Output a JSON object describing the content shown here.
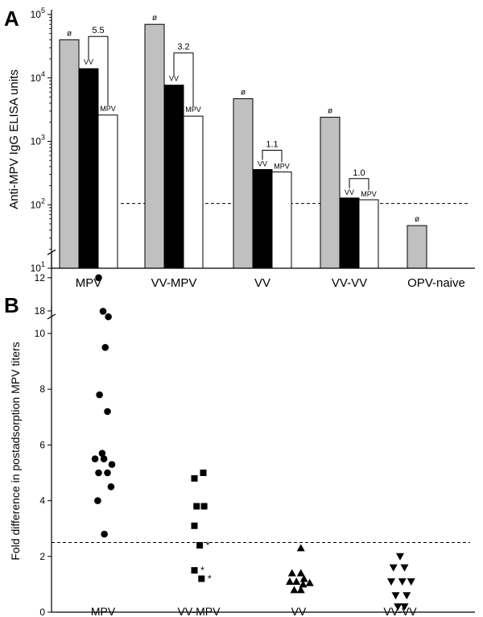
{
  "panels": [
    {
      "panel_label": "A",
      "type": "bar",
      "y_scale": "log",
      "ylabel": "Anti-MPV IgG ELISA units",
      "ylim": [
        10,
        100000
      ],
      "y_ticks": [
        {
          "value": 10,
          "base": "10",
          "exp": "1"
        },
        {
          "value": 100,
          "base": "10",
          "exp": "2"
        },
        {
          "value": 1000,
          "base": "10",
          "exp": "3"
        },
        {
          "value": 10000,
          "base": "10",
          "exp": "4"
        },
        {
          "value": 100000,
          "base": "10",
          "exp": "5"
        }
      ],
      "categories": [
        "MPV",
        "VV-MPV",
        "VV",
        "VV-VV",
        "OPV-naive"
      ],
      "series": [
        {
          "label": "ø",
          "color": "#c0c0c0",
          "values": [
            40000,
            70000,
            4700,
            2400,
            47
          ]
        },
        {
          "label": "VV",
          "color": "#000000",
          "values": [
            14000,
            7700,
            360,
            128,
            null
          ]
        },
        {
          "label": "MPV",
          "color": "#ffffff",
          "values": [
            2600,
            2500,
            330,
            120,
            null
          ]
        }
      ],
      "fold_changes": [
        "5.5",
        "3.2",
        "1.1",
        "1.0",
        null
      ],
      "reference_line": 105
    },
    {
      "panel_label": "B",
      "type": "scatter",
      "ylabel": "Fold difference in postadsorption MPV titers",
      "ylim": [
        0,
        18
      ],
      "y_ticks": [
        "0",
        "2",
        "4",
        "6",
        "8",
        "10",
        "12",
        "18"
      ],
      "y_axis_break": [
        13,
        17
      ],
      "categories": [
        "MPV",
        "VV-MPV",
        "VV",
        "VV-VV"
      ],
      "markers": [
        "circle",
        "square",
        "triangle-up",
        "triangle-down"
      ],
      "points": [
        [
          {
            "x": 0,
            "y": 17.8
          },
          {
            "x": -0.1,
            "y": 12.0
          },
          {
            "x": 0.12,
            "y": 10.6
          },
          {
            "x": 0.05,
            "y": 9.5
          },
          {
            "x": -0.08,
            "y": 7.8
          },
          {
            "x": 0.1,
            "y": 7.2
          },
          {
            "x": -0.18,
            "y": 5.5
          },
          {
            "x": 0.02,
            "y": 5.5
          },
          {
            "x": -0.02,
            "y": 5.7
          },
          {
            "x": -0.1,
            "y": 5.0
          },
          {
            "x": 0.1,
            "y": 5.0
          },
          {
            "x": 0.2,
            "y": 5.3
          },
          {
            "x": 0.18,
            "y": 4.5
          },
          {
            "x": -0.12,
            "y": 4.0
          },
          {
            "x": 0.03,
            "y": 2.8
          }
        ],
        [
          {
            "x": -0.1,
            "y": 4.8
          },
          {
            "x": 0.1,
            "y": 5.0
          },
          {
            "x": -0.05,
            "y": 3.8
          },
          {
            "x": 0.12,
            "y": 3.8
          },
          {
            "x": -0.1,
            "y": 3.1
          },
          {
            "x": 0.02,
            "y": 2.4,
            "note": "*"
          },
          {
            "x": -0.1,
            "y": 1.5,
            "note": "*"
          },
          {
            "x": 0.06,
            "y": 1.2,
            "note": "*"
          }
        ],
        [
          {
            "x": 0.05,
            "y": 2.3
          },
          {
            "x": -0.15,
            "y": 1.4
          },
          {
            "x": 0.05,
            "y": 1.4
          },
          {
            "x": -0.2,
            "y": 1.1
          },
          {
            "x": -0.05,
            "y": 1.1
          },
          {
            "x": 0.1,
            "y": 1.0
          },
          {
            "x": 0.25,
            "y": 1.05
          },
          {
            "x": 0.12,
            "y": 1.2
          },
          {
            "x": -0.1,
            "y": 0.8
          },
          {
            "x": 0.05,
            "y": 0.8
          }
        ],
        [
          {
            "x": 0,
            "y": 2.0
          },
          {
            "x": -0.15,
            "y": 1.6
          },
          {
            "x": 0.1,
            "y": 1.6
          },
          {
            "x": -0.2,
            "y": 1.1
          },
          {
            "x": 0.05,
            "y": 1.1
          },
          {
            "x": 0.25,
            "y": 1.1
          },
          {
            "x": -0.1,
            "y": 0.6
          },
          {
            "x": 0.15,
            "y": 0.6
          },
          {
            "x": -0.05,
            "y": 0.2
          },
          {
            "x": 0.1,
            "y": 0.2
          }
        ]
      ],
      "reference_line": 2.5
    }
  ],
  "chart_data": [
    {
      "type": "bar",
      "ylabel": "Anti-MPV IgG ELISA units",
      "y_scale": "log",
      "ylim": [
        10,
        100000
      ],
      "categories": [
        "MPV",
        "VV-MPV",
        "VV",
        "VV-VV",
        "OPV-naive"
      ],
      "series": [
        {
          "name": "ø",
          "values": [
            40000,
            70000,
            4700,
            2400,
            47
          ]
        },
        {
          "name": "VV",
          "values": [
            14000,
            7700,
            360,
            128,
            null
          ]
        },
        {
          "name": "MPV",
          "values": [
            2600,
            2500,
            330,
            120,
            null
          ]
        }
      ],
      "annotations": [
        "5.5",
        "3.2",
        "1.1",
        "1.0"
      ]
    },
    {
      "type": "scatter",
      "ylabel": "Fold difference in postadsorption MPV titers",
      "ylim": [
        0,
        18
      ],
      "categories": [
        "MPV",
        "VV-MPV",
        "VV",
        "VV-VV"
      ],
      "series": [
        {
          "values": [
            17.8,
            12.0,
            10.6,
            9.5,
            7.8,
            7.2,
            5.5,
            5.5,
            5.7,
            5.0,
            5.0,
            5.3,
            4.5,
            4.0,
            2.8
          ]
        },
        {
          "values": [
            4.8,
            5.0,
            3.8,
            3.8,
            3.1,
            2.4,
            1.5,
            1.2
          ]
        },
        {
          "values": [
            2.3,
            1.4,
            1.4,
            1.1,
            1.1,
            1.0,
            1.05,
            1.2,
            0.8,
            0.8
          ]
        },
        {
          "values": [
            2.0,
            1.6,
            1.6,
            1.1,
            1.1,
            1.1,
            0.6,
            0.6,
            0.2,
            0.2
          ]
        }
      ]
    }
  ]
}
